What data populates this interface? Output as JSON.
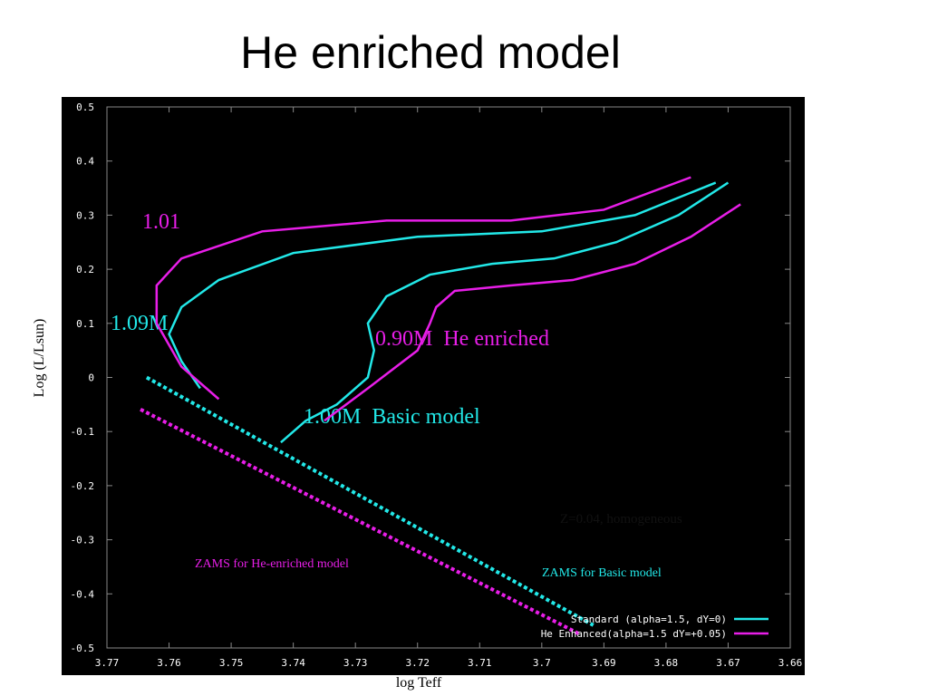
{
  "title": "He enriched model",
  "chart_data": {
    "type": "line",
    "xlabel": "log Teff",
    "ylabel": "Log (L/Lsun)",
    "xlim": [
      3.77,
      3.66
    ],
    "ylim": [
      -0.5,
      0.5
    ],
    "xticks": [
      3.77,
      3.76,
      3.75,
      3.74,
      3.73,
      3.72,
      3.71,
      3.7,
      3.69,
      3.68,
      3.67,
      3.66
    ],
    "yticks": [
      0.5,
      0.4,
      0.3,
      0.2,
      0.1,
      0,
      -0.1,
      -0.2,
      -0.3,
      -0.4,
      -0.5
    ],
    "series": [
      {
        "name": "Standard (alpha=1.5, dY=0)",
        "color": "#22e8e8",
        "x": [
          3.742,
          3.738,
          3.733,
          3.728,
          3.727,
          3.728,
          3.725,
          3.718,
          3.708,
          3.698,
          3.688,
          3.678,
          3.67
        ],
        "values": [
          -0.12,
          -0.08,
          -0.05,
          0.0,
          0.05,
          0.1,
          0.15,
          0.19,
          0.21,
          0.22,
          0.25,
          0.3,
          0.36
        ]
      },
      {
        "name": "He Enhanced(alpha=1.5 dY=+0.05)",
        "color": "#e81ee8",
        "x": [
          3.735,
          3.728,
          3.72,
          3.718,
          3.717,
          3.714,
          3.705,
          3.695,
          3.685,
          3.676,
          3.668
        ],
        "values": [
          -0.08,
          -0.02,
          0.05,
          0.1,
          0.13,
          0.16,
          0.17,
          0.18,
          0.21,
          0.26,
          0.32
        ]
      },
      {
        "color": "#22e8e8",
        "x": [
          3.755,
          3.758,
          3.76,
          3.758,
          3.752,
          3.74,
          3.72,
          3.7,
          3.685,
          3.672
        ],
        "values": [
          -0.02,
          0.03,
          0.08,
          0.13,
          0.18,
          0.23,
          0.26,
          0.27,
          0.3,
          0.36
        ]
      },
      {
        "color": "#e81ee8",
        "x": [
          3.752,
          3.758,
          3.762,
          3.762,
          3.758,
          3.745,
          3.725,
          3.705,
          3.69,
          3.676
        ],
        "values": [
          -0.04,
          0.02,
          0.1,
          0.17,
          0.22,
          0.27,
          0.29,
          0.29,
          0.31,
          0.37
        ]
      },
      {
        "color": "#22e8e8",
        "dash": true,
        "x": [
          3.7636,
          3.6917
        ],
        "values": [
          0.0,
          -0.458
        ]
      },
      {
        "color": "#e81ee8",
        "dash": true,
        "x": [
          3.7646,
          3.6938
        ],
        "values": [
          -0.059,
          -0.475
        ]
      }
    ],
    "annotations": [
      "1.01",
      "1.09M",
      "0.90M  He enriched",
      "1.00M  Basic model",
      "Z=0.04, homogeneous",
      "ZAMS for He-enriched model",
      "ZAMS for Basic model"
    ]
  }
}
